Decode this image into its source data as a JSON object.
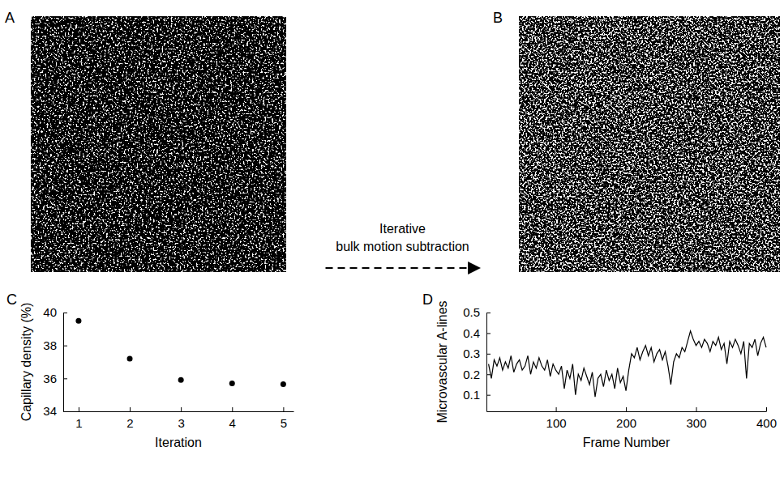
{
  "chart_data": [
    {
      "type": "image",
      "panel": "A"
    },
    {
      "type": "image",
      "panel": "B",
      "annotation": "Iterative bulk motion subtraction"
    },
    {
      "type": "scatter",
      "panel": "C",
      "x_label": "Iteration",
      "y_label": "Capillary density (%)",
      "x": [
        1,
        2,
        3,
        4,
        5
      ],
      "values": [
        39.5,
        37.2,
        35.9,
        35.7,
        35.65
      ],
      "xlim": [
        0.7,
        5.2
      ],
      "ylim": [
        34,
        40
      ],
      "xticks": [
        1,
        2,
        3,
        4,
        5
      ],
      "yticks": [
        34,
        36,
        38,
        40
      ],
      "color": "#000000",
      "marker": "circle"
    },
    {
      "type": "line",
      "panel": "D",
      "x_label": "Frame Number",
      "y_label": "Microvascular A-lines",
      "x": [
        4,
        8,
        12,
        16,
        20,
        24,
        28,
        32,
        36,
        40,
        44,
        48,
        52,
        56,
        60,
        64,
        68,
        72,
        76,
        80,
        84,
        88,
        92,
        96,
        100,
        104,
        108,
        112,
        116,
        120,
        124,
        128,
        132,
        136,
        140,
        144,
        148,
        152,
        156,
        160,
        164,
        168,
        172,
        176,
        180,
        184,
        188,
        192,
        196,
        200,
        204,
        208,
        212,
        216,
        220,
        224,
        228,
        232,
        236,
        240,
        244,
        248,
        252,
        256,
        260,
        264,
        268,
        272,
        276,
        280,
        284,
        288,
        292,
        296,
        300,
        304,
        308,
        312,
        316,
        320,
        324,
        328,
        332,
        336,
        340,
        344,
        348,
        352,
        356,
        360,
        364,
        368,
        372,
        376,
        380,
        384,
        388,
        392,
        396,
        400
      ],
      "values": [
        0.25,
        0.18,
        0.27,
        0.24,
        0.28,
        0.22,
        0.26,
        0.23,
        0.29,
        0.21,
        0.25,
        0.27,
        0.22,
        0.24,
        0.29,
        0.2,
        0.26,
        0.23,
        0.28,
        0.24,
        0.22,
        0.27,
        0.19,
        0.25,
        0.22,
        0.2,
        0.24,
        0.13,
        0.22,
        0.18,
        0.25,
        0.1,
        0.2,
        0.17,
        0.23,
        0.19,
        0.15,
        0.21,
        0.09,
        0.18,
        0.2,
        0.14,
        0.22,
        0.17,
        0.2,
        0.13,
        0.23,
        0.16,
        0.19,
        0.12,
        0.22,
        0.3,
        0.28,
        0.33,
        0.27,
        0.31,
        0.34,
        0.29,
        0.33,
        0.26,
        0.3,
        0.32,
        0.27,
        0.31,
        0.24,
        0.15,
        0.26,
        0.3,
        0.28,
        0.33,
        0.31,
        0.36,
        0.41,
        0.37,
        0.34,
        0.36,
        0.33,
        0.37,
        0.35,
        0.31,
        0.36,
        0.34,
        0.38,
        0.32,
        0.35,
        0.25,
        0.36,
        0.33,
        0.37,
        0.34,
        0.3,
        0.36,
        0.18,
        0.35,
        0.33,
        0.37,
        0.29,
        0.35,
        0.38,
        0.33
      ],
      "xlim": [
        1,
        400
      ],
      "ylim": [
        0.02,
        0.5
      ],
      "xticks": [
        100,
        200,
        300,
        400
      ],
      "yticks": [
        0.1,
        0.2,
        0.3,
        0.4,
        0.5
      ],
      "color": "#000000",
      "line_style": "solid"
    }
  ]
}
